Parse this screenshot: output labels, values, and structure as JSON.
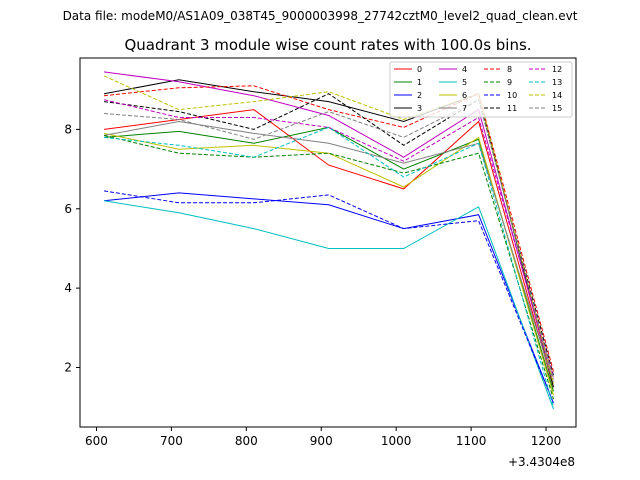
{
  "figure": {
    "suptitle": "Data file: modeM0/AS1A09_038T45_9000003998_27742cztM0_level2_quad_clean.evt"
  },
  "chart_data": {
    "type": "line",
    "title": "Quadrant 3 module wise count rates with 100.0s bins.",
    "xlabel": "",
    "ylabel": "",
    "x_offset_label": "+3.4304e8",
    "x": [
      610,
      710,
      810,
      910,
      1010,
      1110,
      1210
    ],
    "xlim": [
      578,
      1240
    ],
    "ylim": [
      0.5,
      9.8
    ],
    "xticks": [
      600,
      700,
      800,
      900,
      1000,
      1100,
      1200
    ],
    "yticks": [
      2,
      4,
      6,
      8
    ],
    "xtick_labels": [
      "600",
      "700",
      "800",
      "900",
      "1000",
      "1100",
      "1200"
    ],
    "ytick_labels": [
      "2",
      "4",
      "6",
      "8"
    ],
    "legend_location": "upper right",
    "series": [
      {
        "name": "0",
        "color": "#ff0000",
        "style": "solid",
        "values": [
          8.0,
          8.25,
          8.5,
          7.1,
          6.5,
          8.2,
          1.5
        ]
      },
      {
        "name": "1",
        "color": "#008000",
        "style": "solid",
        "values": [
          7.8,
          7.95,
          7.65,
          8.05,
          7.0,
          7.75,
          1.4
        ]
      },
      {
        "name": "2",
        "color": "#0000ff",
        "style": "solid",
        "values": [
          6.2,
          6.4,
          6.25,
          6.1,
          5.5,
          5.85,
          1.1
        ]
      },
      {
        "name": "3",
        "color": "#000000",
        "style": "solid",
        "values": [
          8.9,
          9.25,
          8.95,
          8.7,
          8.2,
          8.9,
          1.5
        ]
      },
      {
        "name": "4",
        "color": "#c000c0",
        "style": "solid",
        "values": [
          9.45,
          9.2,
          8.85,
          8.35,
          7.3,
          8.5,
          1.6
        ]
      },
      {
        "name": "5",
        "color": "#00bfbf",
        "style": "solid",
        "values": [
          6.2,
          5.9,
          5.5,
          5.0,
          5.0,
          6.05,
          0.95
        ]
      },
      {
        "name": "6",
        "color": "#bfbf00",
        "style": "solid",
        "values": [
          7.9,
          7.5,
          7.6,
          7.4,
          6.55,
          7.8,
          1.3
        ]
      },
      {
        "name": "7",
        "color": "#808080",
        "style": "solid",
        "values": [
          7.85,
          8.2,
          7.9,
          7.65,
          7.15,
          7.65,
          1.6
        ]
      },
      {
        "name": "8",
        "color": "#ff0000",
        "style": "dashed",
        "values": [
          8.85,
          9.05,
          9.1,
          8.5,
          8.05,
          8.9,
          1.9
        ]
      },
      {
        "name": "9",
        "color": "#008000",
        "style": "dashed",
        "values": [
          7.85,
          7.4,
          7.3,
          7.4,
          6.9,
          7.4,
          1.2
        ]
      },
      {
        "name": "10",
        "color": "#0000ff",
        "style": "dashed",
        "values": [
          6.45,
          6.15,
          6.15,
          6.35,
          5.5,
          5.7,
          1.1
        ]
      },
      {
        "name": "11",
        "color": "#000000",
        "style": "dashed",
        "values": [
          8.7,
          8.45,
          8.0,
          8.9,
          7.6,
          8.75,
          1.8
        ]
      },
      {
        "name": "12",
        "color": "#c000c0",
        "style": "dashed",
        "values": [
          8.75,
          8.3,
          8.3,
          8.05,
          7.2,
          8.3,
          1.75
        ]
      },
      {
        "name": "13",
        "color": "#00bfbf",
        "style": "dashed",
        "values": [
          7.8,
          7.6,
          7.3,
          8.05,
          6.8,
          7.65,
          1.0
        ]
      },
      {
        "name": "14",
        "color": "#bfbf00",
        "style": "dashed",
        "values": [
          9.35,
          8.5,
          8.7,
          8.95,
          8.25,
          8.9,
          1.6
        ]
      },
      {
        "name": "15",
        "color": "#808080",
        "style": "dashed",
        "values": [
          8.4,
          8.25,
          7.75,
          8.45,
          7.8,
          8.75,
          1.7
        ]
      }
    ]
  }
}
